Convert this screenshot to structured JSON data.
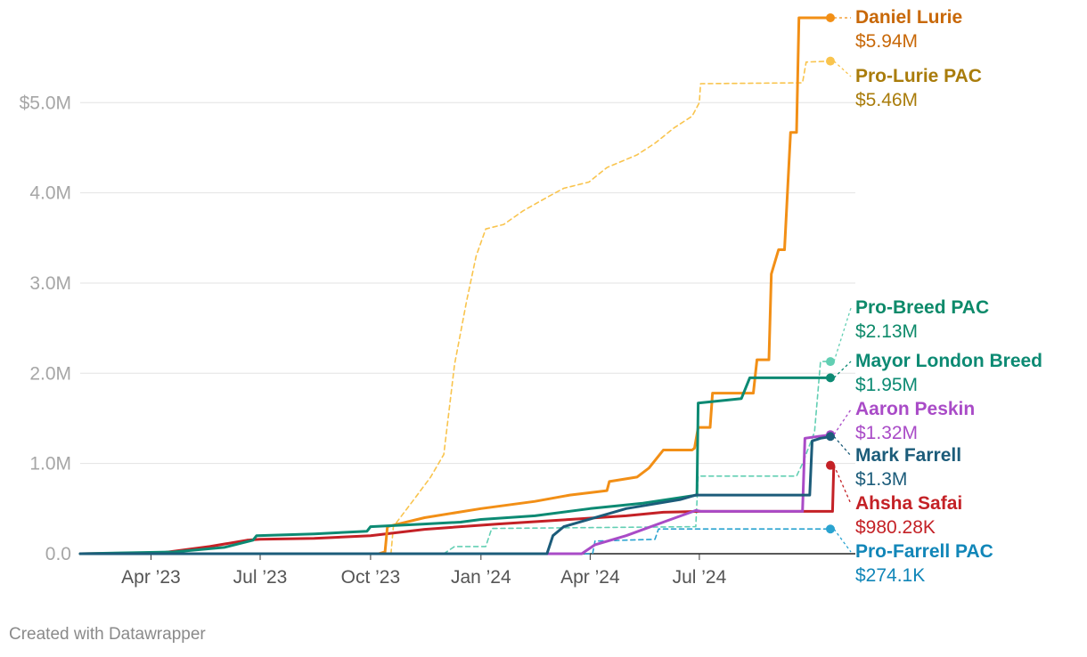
{
  "chart_data": {
    "type": "line",
    "title": "",
    "xlabel": "",
    "ylabel": "",
    "ylim": [
      0,
      5.94
    ],
    "y_unit": "millions of dollars",
    "y_ticks": [
      {
        "value": 0,
        "label": "0.0"
      },
      {
        "value": 1,
        "label": "1.0M"
      },
      {
        "value": 2,
        "label": "2.0M"
      },
      {
        "value": 3,
        "label": "3.0M"
      },
      {
        "value": 4,
        "label": "4.0M"
      },
      {
        "value": 5,
        "label": "$5.0M"
      }
    ],
    "x_range": [
      "2023-02-01",
      "2024-11-08"
    ],
    "x_ticks": [
      {
        "date": "2023-04-01",
        "label": "Apr ’23"
      },
      {
        "date": "2023-07-01",
        "label": "Jul ’23"
      },
      {
        "date": "2023-10-01",
        "label": "Oct ’23"
      },
      {
        "date": "2024-01-01",
        "label": "Jan ’24"
      },
      {
        "date": "2024-04-01",
        "label": "Apr ’24"
      },
      {
        "date": "2024-07-01",
        "label": "Jul ’24"
      }
    ],
    "series": [
      {
        "key": "pro_lurie",
        "name": "Pro-Lurie PAC",
        "value_label": "$5.46M",
        "color": "#f9c44d",
        "label_color": "#a97c0b",
        "dashed": true,
        "width": 1.6,
        "points": [
          [
            "2023-10-18",
            0
          ],
          [
            "2023-10-20",
            0.3
          ],
          [
            "2023-11-05",
            0.58
          ],
          [
            "2023-11-20",
            0.85
          ],
          [
            "2023-12-01",
            1.1
          ],
          [
            "2023-12-10",
            2.1
          ],
          [
            "2023-12-20",
            2.8
          ],
          [
            "2023-12-28",
            3.3
          ],
          [
            "2024-01-05",
            3.6
          ],
          [
            "2024-01-20",
            3.65
          ],
          [
            "2024-02-05",
            3.8
          ],
          [
            "2024-02-25",
            3.95
          ],
          [
            "2024-03-10",
            4.05
          ],
          [
            "2024-03-31",
            4.12
          ],
          [
            "2024-04-15",
            4.28
          ],
          [
            "2024-05-10",
            4.42
          ],
          [
            "2024-05-25",
            4.55
          ],
          [
            "2024-06-10",
            4.72
          ],
          [
            "2024-06-25",
            4.85
          ],
          [
            "2024-07-01",
            5.0
          ],
          [
            "2024-07-02",
            5.21
          ],
          [
            "2024-09-25",
            5.22
          ],
          [
            "2024-09-28",
            5.45
          ],
          [
            "2024-10-20",
            5.46
          ]
        ]
      },
      {
        "key": "pro_breed",
        "name": "Pro-Breed PAC",
        "value_label": "$2.13M",
        "color": "#62cfb3",
        "label_color": "#0d8a6a",
        "dashed": true,
        "width": 1.6,
        "points": [
          [
            "2023-12-01",
            0
          ],
          [
            "2023-12-10",
            0.08
          ],
          [
            "2024-01-05",
            0.08
          ],
          [
            "2024-01-10",
            0.28
          ],
          [
            "2024-06-28",
            0.3
          ],
          [
            "2024-06-30",
            0.86
          ],
          [
            "2024-09-20",
            0.86
          ],
          [
            "2024-09-25",
            1.0
          ],
          [
            "2024-10-05",
            1.35
          ],
          [
            "2024-10-10",
            2.13
          ],
          [
            "2024-10-20",
            2.13
          ]
        ]
      },
      {
        "key": "pro_farrell",
        "name": "Pro-Farrell PAC",
        "value_label": "$274.1K",
        "color": "#2aa3d0",
        "label_color": "#1186b8",
        "dashed": true,
        "width": 1.6,
        "points": [
          [
            "2024-03-01",
            0
          ],
          [
            "2024-04-03",
            0
          ],
          [
            "2024-04-05",
            0.14
          ],
          [
            "2024-05-25",
            0.16
          ],
          [
            "2024-05-28",
            0.274
          ],
          [
            "2024-10-20",
            0.274
          ]
        ]
      },
      {
        "key": "safai",
        "name": "Ahsha Safai",
        "value_label": "$980.28K",
        "color": "#c42126",
        "label_color": "#c42126",
        "dashed": false,
        "width": 3,
        "points": [
          [
            "2023-02-01",
            0
          ],
          [
            "2023-04-10",
            0.01
          ],
          [
            "2023-05-20",
            0.08
          ],
          [
            "2023-06-20",
            0.15
          ],
          [
            "2023-07-01",
            0.16
          ],
          [
            "2023-08-15",
            0.17
          ],
          [
            "2023-10-01",
            0.2
          ],
          [
            "2023-11-15",
            0.27
          ],
          [
            "2024-01-15",
            0.33
          ],
          [
            "2024-03-15",
            0.38
          ],
          [
            "2024-05-01",
            0.42
          ],
          [
            "2024-06-01",
            0.46
          ],
          [
            "2024-07-01",
            0.47
          ],
          [
            "2024-10-20",
            0.47
          ],
          [
            "2024-10-21",
            0.98
          ]
        ]
      },
      {
        "key": "lurie",
        "name": "Daniel Lurie",
        "value_label": "$5.94M",
        "color": "#f28f16",
        "label_color": "#c86808",
        "dashed": false,
        "width": 3,
        "points": [
          [
            "2023-10-08",
            0
          ],
          [
            "2023-10-13",
            0.02
          ],
          [
            "2023-10-15",
            0.3
          ],
          [
            "2023-11-15",
            0.4
          ],
          [
            "2024-01-01",
            0.5
          ],
          [
            "2024-02-15",
            0.58
          ],
          [
            "2024-03-15",
            0.65
          ],
          [
            "2024-04-15",
            0.7
          ],
          [
            "2024-04-17",
            0.8
          ],
          [
            "2024-05-10",
            0.85
          ],
          [
            "2024-05-20",
            0.95
          ],
          [
            "2024-06-01",
            1.15
          ],
          [
            "2024-06-25",
            1.15
          ],
          [
            "2024-06-27",
            1.17
          ],
          [
            "2024-06-30",
            1.4
          ],
          [
            "2024-07-10",
            1.4
          ],
          [
            "2024-07-12",
            1.78
          ],
          [
            "2024-08-15",
            1.78
          ],
          [
            "2024-08-18",
            2.15
          ],
          [
            "2024-08-28",
            2.15
          ],
          [
            "2024-08-30",
            3.1
          ],
          [
            "2024-09-05",
            3.37
          ],
          [
            "2024-09-10",
            3.37
          ],
          [
            "2024-09-15",
            4.67
          ],
          [
            "2024-09-20",
            4.67
          ],
          [
            "2024-09-22",
            5.94
          ],
          [
            "2024-10-20",
            5.94
          ]
        ]
      },
      {
        "key": "breed",
        "name": "Mayor London Breed",
        "value_label": "$1.95M",
        "color": "#0c8a73",
        "label_color": "#0c8a73",
        "dashed": false,
        "width": 3,
        "points": [
          [
            "2023-02-01",
            0
          ],
          [
            "2023-04-20",
            0.02
          ],
          [
            "2023-06-01",
            0.07
          ],
          [
            "2023-06-25",
            0.15
          ],
          [
            "2023-06-28",
            0.2
          ],
          [
            "2023-08-15",
            0.22
          ],
          [
            "2023-09-28",
            0.25
          ],
          [
            "2023-10-01",
            0.3
          ],
          [
            "2023-11-15",
            0.33
          ],
          [
            "2023-12-15",
            0.35
          ],
          [
            "2024-01-01",
            0.38
          ],
          [
            "2024-02-15",
            0.42
          ],
          [
            "2024-04-01",
            0.5
          ],
          [
            "2024-05-15",
            0.56
          ],
          [
            "2024-06-29",
            0.65
          ],
          [
            "2024-06-30",
            1.67
          ],
          [
            "2024-08-05",
            1.72
          ],
          [
            "2024-08-12",
            1.95
          ],
          [
            "2024-10-20",
            1.95
          ]
        ]
      },
      {
        "key": "peskin",
        "name": "Aaron Peskin",
        "value_label": "$1.32M",
        "color": "#a94bc7",
        "label_color": "#a94bc7",
        "dashed": false,
        "width": 3,
        "points": [
          [
            "2024-02-20",
            0
          ],
          [
            "2024-03-25",
            0
          ],
          [
            "2024-04-05",
            0.1
          ],
          [
            "2024-05-01",
            0.2
          ],
          [
            "2024-06-01",
            0.35
          ],
          [
            "2024-06-28",
            0.48
          ],
          [
            "2024-07-02",
            0.47
          ],
          [
            "2024-09-25",
            0.47
          ],
          [
            "2024-09-27",
            1.28
          ],
          [
            "2024-10-08",
            1.3
          ],
          [
            "2024-10-20",
            1.32
          ]
        ]
      },
      {
        "key": "farrell",
        "name": "Mark Farrell",
        "value_label": "$1.3M",
        "color": "#1c5c7a",
        "label_color": "#1c5c7a",
        "dashed": false,
        "width": 3,
        "points": [
          [
            "2023-02-01",
            0
          ],
          [
            "2024-02-25",
            0
          ],
          [
            "2024-03-01",
            0.2
          ],
          [
            "2024-03-10",
            0.3
          ],
          [
            "2024-05-01",
            0.5
          ],
          [
            "2024-06-15",
            0.6
          ],
          [
            "2024-06-28",
            0.65
          ],
          [
            "2024-10-01",
            0.65
          ],
          [
            "2024-10-03",
            1.25
          ],
          [
            "2024-10-10",
            1.28
          ],
          [
            "2024-10-20",
            1.3
          ]
        ]
      }
    ],
    "labels": [
      {
        "key": "lurie",
        "name": "Daniel Lurie",
        "value": "$5.94M"
      },
      {
        "key": "pro_lurie",
        "name": "Pro-Lurie PAC",
        "value": "$5.46M"
      },
      {
        "key": "pro_breed",
        "name": "Pro-Breed PAC",
        "value": "$2.13M"
      },
      {
        "key": "breed",
        "name": "Mayor London Breed",
        "value": "$1.95M"
      },
      {
        "key": "peskin",
        "name": "Aaron Peskin",
        "value": "$1.32M"
      },
      {
        "key": "farrell",
        "name": "Mark Farrell",
        "value": "$1.3M"
      },
      {
        "key": "safai",
        "name": "Ahsha Safai",
        "value": "$980.28K"
      },
      {
        "key": "pro_farrell",
        "name": "Pro-Farrell PAC",
        "value": "$274.1K"
      }
    ]
  },
  "footer": {
    "credit": "Created with Datawrapper"
  }
}
